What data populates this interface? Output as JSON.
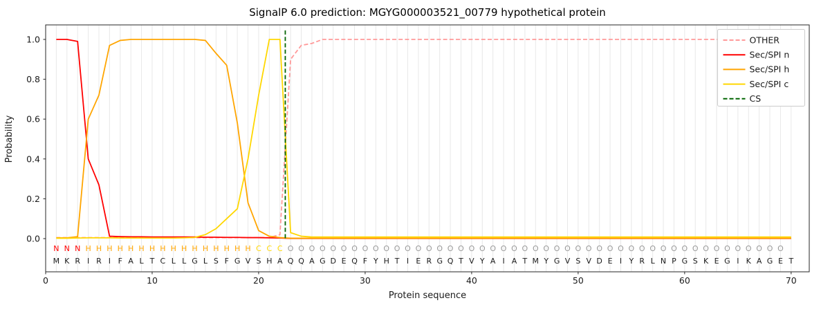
{
  "title": "SignalP 6.0 prediction: MGYG000003521_00779 hypothetical protein",
  "axes": {
    "xlabel": "Protein sequence",
    "ylabel": "Probability",
    "x_ticks": [
      0,
      10,
      20,
      30,
      40,
      50,
      60,
      70
    ],
    "y_ticks": [
      "0.0",
      "0.2",
      "0.4",
      "0.6",
      "0.8",
      "1.0"
    ],
    "xlim": [
      0,
      71.7
    ],
    "ylim": [
      -0.17,
      1.07
    ],
    "grid": "vertical-per-residue"
  },
  "colors": {
    "other": "#ff9999",
    "n": "#ff0000",
    "h": "#ffa500",
    "c": "#ffd700",
    "cs": "#006400",
    "grid": "#e8e8e8",
    "axis": "#262626",
    "text": "#1a1a1a",
    "legend_border": "#cccccc",
    "regions": {
      "N": "#ff0000",
      "H": "#ffa500",
      "C": "#ffd700",
      "O": "#999999"
    }
  },
  "legend": [
    {
      "label": "OTHER",
      "series": "other",
      "dashed": true
    },
    {
      "label": "Sec/SPI n",
      "series": "n",
      "dashed": false
    },
    {
      "label": "Sec/SPI h",
      "series": "h",
      "dashed": false
    },
    {
      "label": "Sec/SPI c",
      "series": "c",
      "dashed": false
    },
    {
      "label": "CS",
      "series": "cs",
      "dashed": true
    }
  ],
  "chart_data": {
    "type": "line",
    "title": "SignalP 6.0 prediction: MGYG000003521_00779 hypothetical protein",
    "xlabel": "Protein sequence",
    "ylabel": "Probability",
    "legend_position": "upper right",
    "x": [
      1,
      2,
      3,
      4,
      5,
      6,
      7,
      8,
      9,
      10,
      11,
      12,
      13,
      14,
      15,
      16,
      17,
      18,
      19,
      20,
      21,
      22,
      23,
      24,
      25,
      26,
      27,
      28,
      29,
      30,
      31,
      32,
      33,
      34,
      35,
      36,
      37,
      38,
      39,
      40,
      41,
      42,
      43,
      44,
      45,
      46,
      47,
      48,
      49,
      50,
      51,
      52,
      53,
      54,
      55,
      56,
      57,
      58,
      59,
      60,
      61,
      62,
      63,
      64,
      65,
      66,
      67,
      68,
      69,
      70
    ],
    "cs_position": 22.5,
    "sequence": "MKRIRIFALTCLLGLSFGVSHAQQAGDEQFYHTIERGQTVYAIATMYGVSVDEIYRLNPGSKEGIKAGET",
    "region_labels": "NNNHHHHHHHHHHHHHHHHCCCOOOOOOOOOOOOOOOOOOOOOOOOOOOOOOOOOOOOOOOOOOOOOOO",
    "series": [
      {
        "name": "OTHER",
        "color_key": "other",
        "dashed": true,
        "values": [
          0.005,
          0.005,
          0.005,
          0.005,
          0.005,
          0.005,
          0.005,
          0.005,
          0.005,
          0.005,
          0.005,
          0.005,
          0.005,
          0.005,
          0.005,
          0.005,
          0.005,
          0.005,
          0.005,
          0.005,
          0.005,
          0.02,
          0.9,
          0.97,
          0.98,
          1.0,
          1.0,
          1.0,
          1.0,
          1.0,
          1.0,
          1.0,
          1.0,
          1.0,
          1.0,
          1.0,
          1.0,
          1.0,
          1.0,
          1.0,
          1.0,
          1.0,
          1.0,
          1.0,
          1.0,
          1.0,
          1.0,
          1.0,
          1.0,
          1.0,
          1.0,
          1.0,
          1.0,
          1.0,
          1.0,
          1.0,
          1.0,
          1.0,
          1.0,
          1.0,
          1.0,
          1.0,
          1.0,
          1.0,
          1.0,
          1.0,
          1.0,
          1.0,
          1.0,
          1.0
        ]
      },
      {
        "name": "Sec/SPI n",
        "color_key": "n",
        "dashed": false,
        "values": [
          1.0,
          1.0,
          0.99,
          0.4,
          0.27,
          0.012,
          0.01,
          0.009,
          0.009,
          0.008,
          0.008,
          0.008,
          0.008,
          0.008,
          0.007,
          0.007,
          0.006,
          0.006,
          0.005,
          0.005,
          0.004,
          0.003,
          0.001,
          0.001,
          0.001,
          0.001,
          0.001,
          0.001,
          0.001,
          0.001,
          0.001,
          0.001,
          0.001,
          0.001,
          0.001,
          0.001,
          0.001,
          0.001,
          0.001,
          0.001,
          0.001,
          0.001,
          0.001,
          0.001,
          0.001,
          0.001,
          0.001,
          0.001,
          0.001,
          0.001,
          0.001,
          0.001,
          0.001,
          0.001,
          0.001,
          0.001,
          0.001,
          0.001,
          0.001,
          0.001,
          0.001,
          0.001,
          0.001,
          0.001,
          0.001,
          0.001,
          0.001,
          0.001,
          0.001,
          0.001
        ]
      },
      {
        "name": "Sec/SPI h",
        "color_key": "h",
        "dashed": false,
        "values": [
          0.004,
          0.004,
          0.01,
          0.6,
          0.72,
          0.97,
          0.995,
          1.0,
          1.0,
          1.0,
          1.0,
          1.0,
          1.0,
          1.0,
          0.995,
          0.93,
          0.87,
          0.58,
          0.18,
          0.04,
          0.012,
          0.005,
          0.002,
          0.002,
          0.002,
          0.002,
          0.002,
          0.002,
          0.002,
          0.002,
          0.002,
          0.002,
          0.002,
          0.002,
          0.002,
          0.002,
          0.002,
          0.002,
          0.002,
          0.002,
          0.002,
          0.002,
          0.002,
          0.002,
          0.002,
          0.002,
          0.002,
          0.002,
          0.002,
          0.002,
          0.002,
          0.002,
          0.002,
          0.002,
          0.002,
          0.002,
          0.002,
          0.002,
          0.002,
          0.002,
          0.002,
          0.002,
          0.002,
          0.002,
          0.002,
          0.002,
          0.002,
          0.002,
          0.002,
          0.002
        ]
      },
      {
        "name": "Sec/SPI c",
        "color_key": "c",
        "dashed": false,
        "values": [
          0.002,
          0.002,
          0.003,
          0.004,
          0.004,
          0.004,
          0.003,
          0.003,
          0.003,
          0.003,
          0.003,
          0.003,
          0.004,
          0.006,
          0.02,
          0.05,
          0.1,
          0.15,
          0.4,
          0.72,
          1.0,
          1.0,
          0.03,
          0.012,
          0.008,
          0.008,
          0.008,
          0.008,
          0.008,
          0.008,
          0.008,
          0.008,
          0.008,
          0.008,
          0.008,
          0.008,
          0.008,
          0.008,
          0.008,
          0.008,
          0.008,
          0.008,
          0.008,
          0.008,
          0.008,
          0.008,
          0.008,
          0.008,
          0.008,
          0.008,
          0.008,
          0.008,
          0.008,
          0.008,
          0.008,
          0.008,
          0.008,
          0.008,
          0.008,
          0.008,
          0.008,
          0.008,
          0.008,
          0.008,
          0.008,
          0.008,
          0.008,
          0.008,
          0.008,
          0.008
        ]
      }
    ]
  }
}
